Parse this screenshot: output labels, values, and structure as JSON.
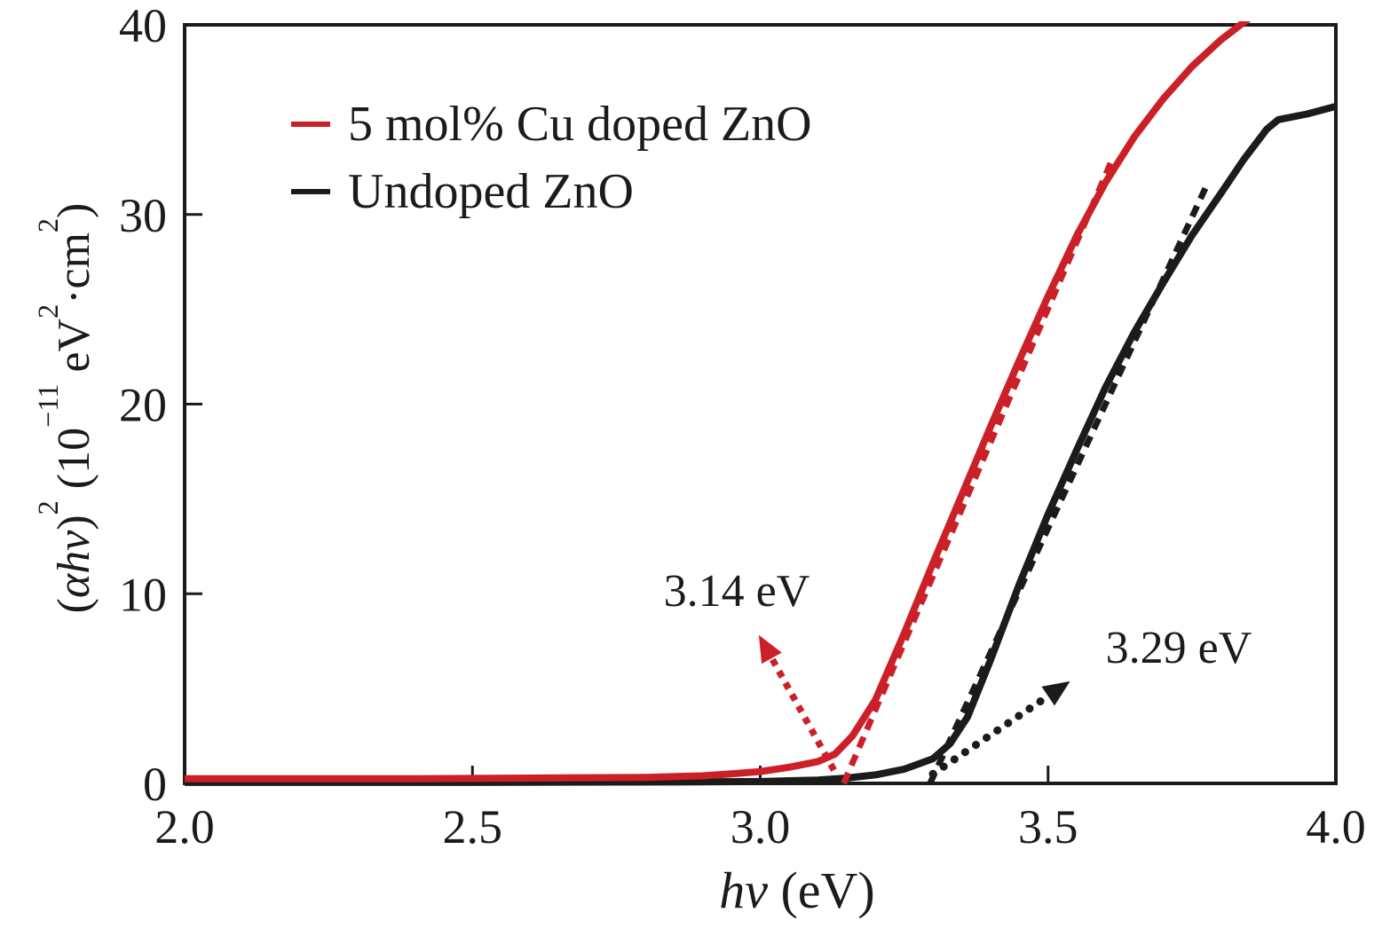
{
  "figure": {
    "background": "#ffffff",
    "frame_color": "#1c1b1b",
    "legend": {
      "items": [
        {
          "label": "5 mol% Cu doped ZnO",
          "color": "#cc2028"
        },
        {
          "label": "Undoped ZnO",
          "color": "#1c1b1b"
        }
      ]
    },
    "annotations": [
      {
        "text": "3.14 eV",
        "color": "#1c1b1b"
      },
      {
        "text": "3.29 eV",
        "color": "#1c1b1b"
      }
    ],
    "xlabel": {
      "var": "hv",
      "unit": " (eV)"
    },
    "ylabel": {
      "open": "(",
      "vars": "αhv",
      "close": ")",
      "exp": "2",
      "scale_open": " (10",
      "scale_exp": "−11",
      "unit_ev": " eV",
      "unit_ev_exp": "2",
      "unit_cm": "·cm",
      "unit_cm_exp": "2",
      "end": ")"
    }
  },
  "chart_data": {
    "type": "line",
    "title": "",
    "xlabel": "hv (eV)",
    "ylabel": "(αhv)² (10⁻¹¹ eV²·cm²)",
    "xlim": [
      2.0,
      4.0
    ],
    "ylim": [
      0,
      40
    ],
    "grid": false,
    "legend_position": "upper-left-inside",
    "x_ticks": [
      {
        "value": 2.0,
        "label": "2.0"
      },
      {
        "value": 2.5,
        "label": "2.5"
      },
      {
        "value": 3.0,
        "label": "3.0"
      },
      {
        "value": 3.5,
        "label": "3.5"
      },
      {
        "value": 4.0,
        "label": "4.0"
      }
    ],
    "y_ticks": [
      {
        "value": 0,
        "label": "0"
      },
      {
        "value": 10,
        "label": "10"
      },
      {
        "value": 20,
        "label": "20"
      },
      {
        "value": 30,
        "label": "30"
      },
      {
        "value": 40,
        "label": "40"
      }
    ],
    "series": [
      {
        "name": "Undoped ZnO",
        "style": "solid",
        "color": "#1c1b1b",
        "width": 8,
        "points": [
          [
            2.0,
            0.05
          ],
          [
            2.5,
            0.05
          ],
          [
            2.9,
            0.08
          ],
          [
            3.0,
            0.1
          ],
          [
            3.1,
            0.18
          ],
          [
            3.15,
            0.28
          ],
          [
            3.2,
            0.45
          ],
          [
            3.25,
            0.75
          ],
          [
            3.3,
            1.3
          ],
          [
            3.33,
            2.1
          ],
          [
            3.36,
            3.5
          ],
          [
            3.4,
            6.5
          ],
          [
            3.45,
            10.5
          ],
          [
            3.5,
            14.2
          ],
          [
            3.55,
            17.6
          ],
          [
            3.6,
            20.9
          ],
          [
            3.65,
            23.8
          ],
          [
            3.7,
            26.4
          ],
          [
            3.75,
            28.9
          ],
          [
            3.8,
            31.1
          ],
          [
            3.84,
            32.9
          ],
          [
            3.88,
            34.5
          ],
          [
            3.9,
            35.0
          ],
          [
            3.95,
            35.3
          ],
          [
            4.0,
            35.7
          ]
        ]
      },
      {
        "name": "Undoped ZnO linear fit",
        "style": "dashed",
        "color": "#1c1b1b",
        "width": 7,
        "points": [
          [
            3.295,
            0
          ],
          [
            3.775,
            31.5
          ]
        ]
      },
      {
        "name": "5 mol% Cu doped ZnO",
        "style": "solid",
        "color": "#cc2028",
        "width": 8,
        "points": [
          [
            2.0,
            0.25
          ],
          [
            2.2,
            0.25
          ],
          [
            2.4,
            0.25
          ],
          [
            2.6,
            0.28
          ],
          [
            2.8,
            0.32
          ],
          [
            2.9,
            0.4
          ],
          [
            2.95,
            0.5
          ],
          [
            3.0,
            0.62
          ],
          [
            3.05,
            0.85
          ],
          [
            3.1,
            1.15
          ],
          [
            3.13,
            1.55
          ],
          [
            3.16,
            2.5
          ],
          [
            3.2,
            4.4
          ],
          [
            3.25,
            7.9
          ],
          [
            3.3,
            11.6
          ],
          [
            3.35,
            15.2
          ],
          [
            3.4,
            18.8
          ],
          [
            3.45,
            22.3
          ],
          [
            3.5,
            25.7
          ],
          [
            3.55,
            28.9
          ],
          [
            3.6,
            31.7
          ],
          [
            3.65,
            34.1
          ],
          [
            3.7,
            36.1
          ],
          [
            3.75,
            37.8
          ],
          [
            3.8,
            39.2
          ],
          [
            3.86,
            40.6
          ]
        ]
      },
      {
        "name": "5 mol% Cu doped ZnO linear fit",
        "style": "dashed",
        "color": "#cc2028",
        "width": 7,
        "points": [
          [
            3.145,
            0
          ],
          [
            3.61,
            32.8
          ]
        ]
      }
    ],
    "band_gaps": [
      {
        "series": "5 mol% Cu doped ZnO",
        "label": "3.14 eV",
        "value_eV": 3.14
      },
      {
        "series": "Undoped ZnO",
        "label": "3.29 eV",
        "value_eV": 3.29
      }
    ],
    "arrows": [
      {
        "name": "bandgap-arrow-cu-doped",
        "color": "#cc2028",
        "dot_style": "square",
        "from": [
          3.128,
          0.7
        ],
        "to": [
          3.02,
          6.6
        ]
      },
      {
        "name": "bandgap-arrow-undoped",
        "color": "#1c1b1b",
        "dot_style": "round",
        "from": [
          3.3,
          0.5
        ],
        "to": [
          3.5,
          4.6
        ]
      }
    ]
  }
}
